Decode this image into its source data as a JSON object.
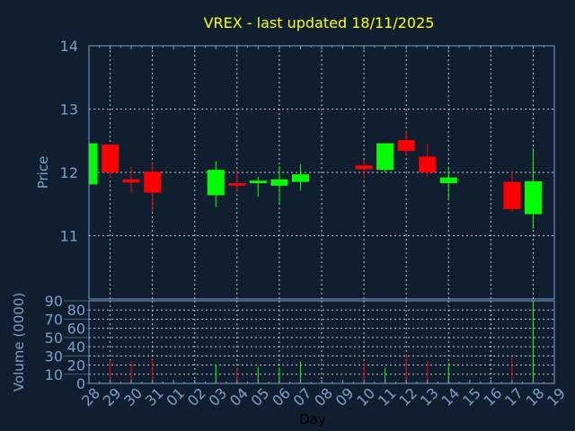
{
  "chart_data": {
    "type": "candlestick",
    "title": "VREX - last updated 18/11/2025",
    "xlabel": "Day",
    "ylabel": "Price",
    "volume_ylabel": "Volume (0000)",
    "x_tick_labels": [
      "28",
      "29",
      "30",
      "31",
      "01",
      "02",
      "03",
      "04",
      "05",
      "06",
      "07",
      "08",
      "09",
      "10",
      "11",
      "12",
      "13",
      "14",
      "15",
      "16",
      "17",
      "18",
      "19"
    ],
    "price_ylim": [
      10,
      14
    ],
    "price_yticks": [
      11,
      12,
      13,
      14
    ],
    "volume_ylim": [
      0,
      90
    ],
    "volume_yticks": [
      0,
      10,
      20,
      30,
      40,
      50,
      60,
      70,
      80,
      90
    ],
    "grid": true,
    "colors": {
      "up": "#00ff00",
      "down": "#ff0000",
      "title": "#ffff00",
      "axis": "#7f9fc8",
      "background": "#0f1f30"
    },
    "candles": [
      {
        "day": "28",
        "open": 11.81,
        "high": 12.46,
        "low": 11.81,
        "close": 12.46,
        "volume": 0
      },
      {
        "day": "29",
        "open": 12.44,
        "high": 12.44,
        "low": 11.91,
        "close": 12.0,
        "volume": 25
      },
      {
        "day": "30",
        "open": 11.89,
        "high": 12.08,
        "low": 11.68,
        "close": 11.84,
        "volume": 23.5
      },
      {
        "day": "31",
        "open": 12.01,
        "high": 12.15,
        "low": 11.37,
        "close": 11.68,
        "volume": 26
      },
      {
        "day": "03",
        "open": 11.64,
        "high": 12.18,
        "low": 11.45,
        "close": 12.04,
        "volume": 20
      },
      {
        "day": "04",
        "open": 11.83,
        "high": 12.04,
        "low": 11.69,
        "close": 11.79,
        "volume": 16
      },
      {
        "day": "05",
        "open": 11.83,
        "high": 11.93,
        "low": 11.62,
        "close": 11.87,
        "volume": 18
      },
      {
        "day": "06",
        "open": 11.79,
        "high": 12.1,
        "low": 11.51,
        "close": 11.89,
        "volume": 17
      },
      {
        "day": "07",
        "open": 11.85,
        "high": 12.13,
        "low": 11.71,
        "close": 11.97,
        "volume": 24
      },
      {
        "day": "10",
        "open": 12.11,
        "high": 12.2,
        "low": 11.91,
        "close": 12.05,
        "volume": 22
      },
      {
        "day": "11",
        "open": 12.04,
        "high": 12.46,
        "low": 12.0,
        "close": 12.46,
        "volume": 17
      },
      {
        "day": "12",
        "open": 12.51,
        "high": 12.65,
        "low": 12.27,
        "close": 12.34,
        "volume": 31
      },
      {
        "day": "13",
        "open": 12.25,
        "high": 12.46,
        "low": 11.93,
        "close": 12.0,
        "volume": 24.5
      },
      {
        "day": "14",
        "open": 11.83,
        "high": 12.09,
        "low": 11.57,
        "close": 11.92,
        "volume": 22
      },
      {
        "day": "17",
        "open": 11.85,
        "high": 12.03,
        "low": 11.38,
        "close": 11.42,
        "volume": 29
      },
      {
        "day": "18",
        "open": 11.34,
        "high": 12.34,
        "low": 11.11,
        "close": 11.86,
        "volume": 88
      }
    ]
  }
}
